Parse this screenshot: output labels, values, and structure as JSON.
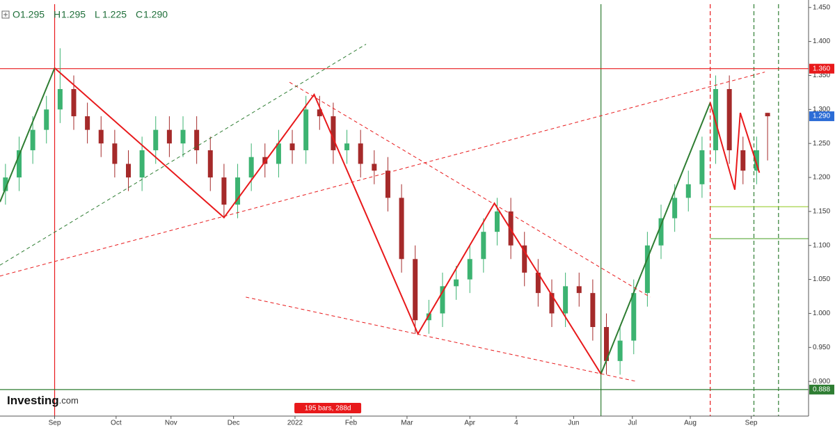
{
  "chart_data": {
    "type": "candlestick",
    "ohlc_legend": [
      {
        "key": "O",
        "text": "1.295"
      },
      {
        "key": "H",
        "text": "1.295"
      },
      {
        "key": "L",
        "text": "1.225"
      },
      {
        "key": "C",
        "text": "1.290"
      }
    ],
    "xlim": [
      0,
      296
    ],
    "ylim": [
      0.849,
      1.461
    ],
    "yticks": [
      {
        "value": 1.45,
        "label": "1.450"
      },
      {
        "value": 1.4,
        "label": "1.400"
      },
      {
        "value": 1.35,
        "label": "1.350"
      },
      {
        "value": 1.3,
        "label": "1.300"
      },
      {
        "value": 1.25,
        "label": "1.250"
      },
      {
        "value": 1.2,
        "label": "1.200"
      },
      {
        "value": 1.15,
        "label": "1.150"
      },
      {
        "value": 1.1,
        "label": "1.100"
      },
      {
        "value": 1.05,
        "label": "1.050"
      },
      {
        "value": 1.0,
        "label": "1.000"
      },
      {
        "value": 0.95,
        "label": "0.950"
      },
      {
        "value": 0.9,
        "label": "0.900"
      }
    ],
    "xticks": [
      {
        "value": 20,
        "label": "Sep"
      },
      {
        "value": 42.5,
        "label": "Oct"
      },
      {
        "value": 62.6,
        "label": "Nov"
      },
      {
        "value": 85.5,
        "label": "Dec"
      },
      {
        "value": 108,
        "label": "2022"
      },
      {
        "value": 128.5,
        "label": "Feb"
      },
      {
        "value": 149,
        "label": "Mar"
      },
      {
        "value": 172,
        "label": "Apr"
      },
      {
        "value": 189,
        "label": "4"
      },
      {
        "value": 210,
        "label": "Jun"
      },
      {
        "value": 231.5,
        "label": "Jul"
      },
      {
        "value": 252.7,
        "label": "Aug"
      },
      {
        "value": 275,
        "label": "Sep"
      }
    ],
    "up_color": "#3cb371",
    "down_color": "#a52a2a",
    "candles": {
      "x": [
        2,
        7,
        12,
        17,
        22,
        27,
        32,
        37,
        42,
        47,
        52,
        57,
        62,
        67,
        72,
        77,
        82,
        87,
        92,
        97,
        102,
        107,
        112,
        117,
        122,
        127,
        132,
        137,
        142,
        147,
        152,
        157,
        162,
        167,
        172,
        177,
        182,
        187,
        192,
        197,
        202,
        207,
        212,
        217,
        222,
        227,
        232,
        237,
        242,
        247,
        252,
        257,
        262,
        267,
        272,
        277,
        281
      ],
      "open": [
        1.18,
        1.2,
        1.24,
        1.27,
        1.3,
        1.33,
        1.29,
        1.27,
        1.25,
        1.22,
        1.2,
        1.24,
        1.27,
        1.25,
        1.27,
        1.24,
        1.2,
        1.16,
        1.2,
        1.23,
        1.22,
        1.25,
        1.24,
        1.3,
        1.29,
        1.24,
        1.25,
        1.22,
        1.21,
        1.17,
        1.08,
        0.99,
        1.0,
        1.04,
        1.05,
        1.08,
        1.12,
        1.15,
        1.1,
        1.06,
        1.03,
        1.0,
        1.04,
        1.03,
        0.98,
        0.93,
        0.96,
        1.03,
        1.1,
        1.14,
        1.17,
        1.19,
        1.24,
        1.33,
        1.24,
        1.21,
        1.295
      ],
      "high": [
        1.22,
        1.26,
        1.29,
        1.32,
        1.39,
        1.35,
        1.31,
        1.29,
        1.27,
        1.24,
        1.26,
        1.29,
        1.29,
        1.29,
        1.29,
        1.26,
        1.22,
        1.22,
        1.25,
        1.25,
        1.27,
        1.27,
        1.32,
        1.32,
        1.31,
        1.27,
        1.27,
        1.24,
        1.23,
        1.19,
        1.1,
        1.02,
        1.06,
        1.07,
        1.1,
        1.14,
        1.17,
        1.17,
        1.12,
        1.08,
        1.05,
        1.06,
        1.06,
        1.05,
        1.0,
        0.98,
        1.05,
        1.12,
        1.16,
        1.19,
        1.21,
        1.26,
        1.35,
        1.35,
        1.26,
        1.26,
        1.295
      ],
      "low": [
        1.16,
        1.18,
        1.22,
        1.25,
        1.28,
        1.27,
        1.25,
        1.23,
        1.2,
        1.18,
        1.18,
        1.22,
        1.23,
        1.23,
        1.22,
        1.18,
        1.14,
        1.14,
        1.18,
        1.2,
        1.2,
        1.22,
        1.22,
        1.27,
        1.22,
        1.22,
        1.2,
        1.19,
        1.15,
        1.06,
        0.97,
        0.97,
        0.98,
        1.02,
        1.03,
        1.06,
        1.1,
        1.08,
        1.04,
        1.01,
        0.98,
        0.98,
        1.01,
        0.96,
        0.91,
        0.91,
        0.94,
        1.01,
        1.08,
        1.12,
        1.15,
        1.17,
        1.22,
        1.22,
        1.19,
        1.19,
        1.225
      ],
      "close": [
        1.2,
        1.24,
        1.27,
        1.3,
        1.33,
        1.29,
        1.27,
        1.25,
        1.22,
        1.2,
        1.24,
        1.27,
        1.25,
        1.27,
        1.24,
        1.2,
        1.16,
        1.2,
        1.23,
        1.22,
        1.25,
        1.24,
        1.3,
        1.29,
        1.24,
        1.25,
        1.22,
        1.21,
        1.17,
        1.08,
        0.99,
        1.0,
        1.04,
        1.05,
        1.08,
        1.12,
        1.15,
        1.1,
        1.06,
        1.03,
        1.0,
        1.04,
        1.03,
        0.98,
        0.93,
        0.96,
        1.03,
        1.1,
        1.14,
        1.17,
        1.19,
        1.24,
        1.33,
        1.24,
        1.21,
        1.24,
        1.29
      ]
    },
    "overlays": [
      {
        "color": "#2e7d32",
        "dash": false,
        "width": 2,
        "x": [
          0,
          20
        ],
        "y": [
          1.164,
          1.361
        ]
      },
      {
        "color": "#e8191b",
        "dash": false,
        "width": 2,
        "x": [
          20,
          82,
          115,
          153,
          181,
          220
        ],
        "y": [
          1.361,
          1.141,
          1.322,
          0.97,
          1.162,
          0.911
        ]
      },
      {
        "color": "#2e7d32",
        "dash": false,
        "width": 2,
        "x": [
          220,
          260
        ],
        "y": [
          0.911,
          1.31
        ]
      },
      {
        "color": "#e8191b",
        "dash": false,
        "width": 2,
        "x": [
          260,
          269,
          271,
          278
        ],
        "y": [
          1.31,
          1.182,
          1.295,
          1.207
        ]
      },
      {
        "color": "#e8191b",
        "dash": true,
        "width": 1,
        "x": [
          0,
          280
        ],
        "y": [
          1.055,
          1.355
        ]
      },
      {
        "color": "#e8191b",
        "dash": true,
        "width": 1,
        "x": [
          106,
          238
        ],
        "y": [
          1.34,
          1.024
        ]
      },
      {
        "color": "#e8191b",
        "dash": true,
        "width": 1,
        "x": [
          90,
          233
        ],
        "y": [
          1.024,
          0.9
        ]
      },
      {
        "color": "#2e7d32",
        "dash": true,
        "width": 1,
        "x": [
          0,
          134
        ],
        "y": [
          1.071,
          1.396
        ]
      }
    ],
    "hlines": [
      {
        "value": 1.36,
        "color": "#e8191b",
        "from": 0
      },
      {
        "value": 0.888,
        "color": "#2e7d32",
        "from": 0
      },
      {
        "value": 1.157,
        "color": "#9acd32",
        "from": 260
      },
      {
        "value": 1.11,
        "color": "#6ab04c",
        "from": 260
      }
    ],
    "vlines": [
      {
        "x": 20,
        "color": "#e8191b",
        "dash": false
      },
      {
        "x": 220,
        "color": "#2e7d32",
        "dash": false
      },
      {
        "x": 260,
        "color": "#e8191b",
        "dash": true
      },
      {
        "x": 276,
        "color": "#2e7d32",
        "dash": true
      },
      {
        "x": 285,
        "color": "#2e7d32",
        "dash": true
      }
    ],
    "price_tags": [
      {
        "value": 1.36,
        "label": "1.360",
        "color": "#e8191b"
      },
      {
        "value": 1.29,
        "label": "1.290",
        "color": "#2b6cd6"
      },
      {
        "value": 0.888,
        "label": "0.888",
        "color": "#2e7d32"
      }
    ],
    "annotation": {
      "text": "195 bars, 288d",
      "x": 120,
      "color": "#e8191b"
    }
  },
  "brand": {
    "name": "Investing",
    "suffix": ".com"
  }
}
